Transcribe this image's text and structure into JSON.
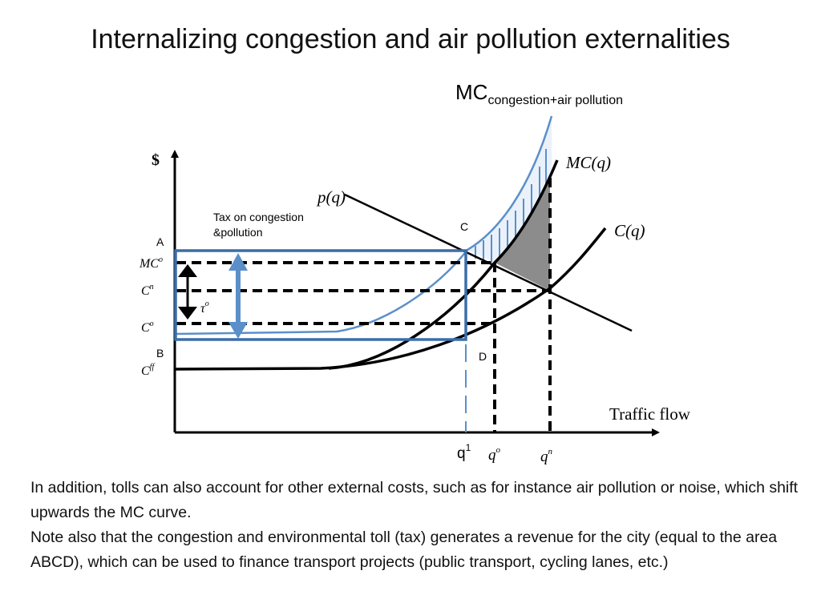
{
  "title": "Internalizing congestion and air pollution externalities",
  "diagram": {
    "axis_y": "$",
    "axis_x": "Traffic flow",
    "mc_total_main": "MC",
    "mc_total_sub": "congestion+air pollution",
    "label_mc": "MC(q)",
    "label_p": "p(q)",
    "label_c": "C(q)",
    "tax_label_line1": "Tax on congestion",
    "tax_label_line2": "&pollution",
    "tau": "τ",
    "tau_sup": "o",
    "y_ticks": [
      {
        "main": "MC",
        "sup": "o"
      },
      {
        "main": "C",
        "sup": "n"
      },
      {
        "main": "C",
        "sup": "o"
      },
      {
        "main": "C",
        "sup": "ff"
      }
    ],
    "x_ticks": [
      {
        "main": "q",
        "sup": "1"
      },
      {
        "main": "q",
        "sup": "o"
      },
      {
        "main": "q",
        "sup": "n"
      }
    ],
    "points": {
      "A": "A",
      "B": "B",
      "C": "C",
      "D": "D"
    },
    "colors": {
      "blue": "#5b8fc9",
      "dark_blue": "#3c6da8",
      "grey": "#8c8c8c"
    }
  },
  "body": [
    "In addition, tolls can also account for other external costs, such as for instance air pollution or noise, which shift upwards the MC curve.",
    "Note also that the congestion and environmental toll (tax) generates a revenue for the city (equal to the area ABCD), which can be used to finance transport projects (public transport, cycling lanes, etc.)"
  ]
}
